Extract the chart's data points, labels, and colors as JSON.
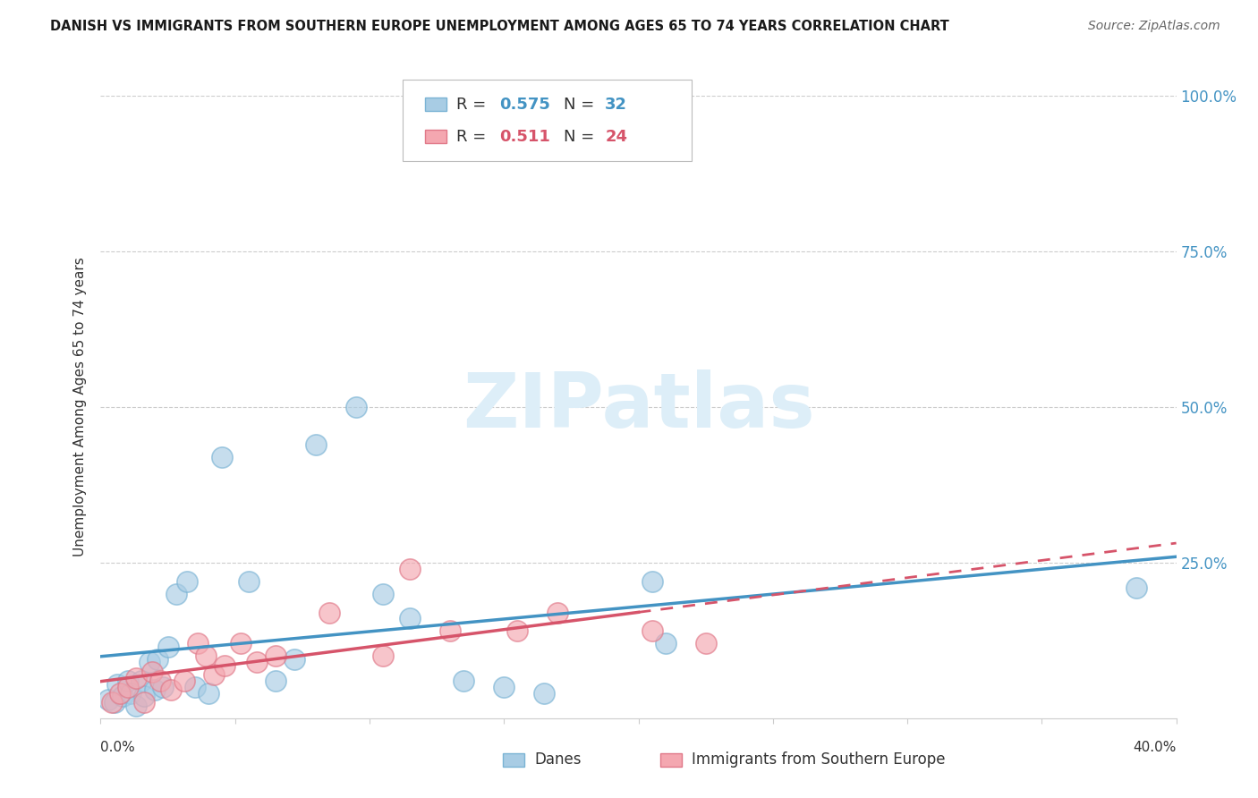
{
  "title": "DANISH VS IMMIGRANTS FROM SOUTHERN EUROPE UNEMPLOYMENT AMONG AGES 65 TO 74 YEARS CORRELATION CHART",
  "source": "Source: ZipAtlas.com",
  "ylabel": "Unemployment Among Ages 65 to 74 years",
  "legend_label1": "Danes",
  "legend_label2": "Immigrants from Southern Europe",
  "R1": 0.575,
  "N1": 32,
  "R2": 0.511,
  "N2": 24,
  "blue_scatter_color": "#a8cce4",
  "blue_edge_color": "#7ab3d4",
  "blue_line_color": "#4393c3",
  "pink_scatter_color": "#f4a7b0",
  "pink_edge_color": "#e07888",
  "pink_line_color": "#d6546a",
  "blue_x": [
    0.3,
    0.5,
    0.6,
    0.8,
    1.0,
    1.1,
    1.3,
    1.5,
    1.6,
    1.8,
    2.0,
    2.1,
    2.3,
    2.5,
    2.8,
    3.2,
    3.5,
    4.0,
    4.5,
    5.5,
    6.5,
    7.2,
    8.0,
    9.5,
    10.5,
    11.5,
    13.5,
    15.0,
    16.5,
    20.5,
    21.0,
    38.5
  ],
  "blue_y": [
    3.0,
    2.5,
    5.5,
    3.5,
    6.0,
    4.0,
    2.0,
    6.0,
    3.5,
    9.0,
    4.5,
    9.5,
    5.0,
    11.5,
    20.0,
    22.0,
    5.0,
    4.0,
    42.0,
    22.0,
    6.0,
    9.5,
    44.0,
    50.0,
    20.0,
    16.0,
    6.0,
    5.0,
    4.0,
    22.0,
    12.0,
    21.0
  ],
  "pink_x": [
    0.4,
    0.7,
    1.0,
    1.3,
    1.6,
    1.9,
    2.2,
    2.6,
    3.1,
    3.6,
    3.9,
    4.2,
    4.6,
    5.2,
    5.8,
    6.5,
    8.5,
    10.5,
    11.5,
    13.0,
    15.5,
    17.0,
    20.5,
    22.5
  ],
  "pink_y": [
    2.5,
    4.0,
    5.0,
    6.5,
    2.5,
    7.5,
    6.0,
    4.5,
    6.0,
    12.0,
    10.0,
    7.0,
    8.5,
    12.0,
    9.0,
    10.0,
    17.0,
    10.0,
    24.0,
    14.0,
    14.0,
    17.0,
    14.0,
    12.0
  ],
  "xlim": [
    0,
    40
  ],
  "ylim": [
    0,
    100
  ],
  "yticks": [
    0,
    25,
    50,
    75,
    100
  ],
  "ytick_labels_right": [
    "",
    "25.0%",
    "50.0%",
    "75.0%",
    "100.0%"
  ],
  "grid_color": "#cccccc",
  "bg_color": "#ffffff",
  "watermark_color": "#ddeef8",
  "pink_solid_end": 20
}
